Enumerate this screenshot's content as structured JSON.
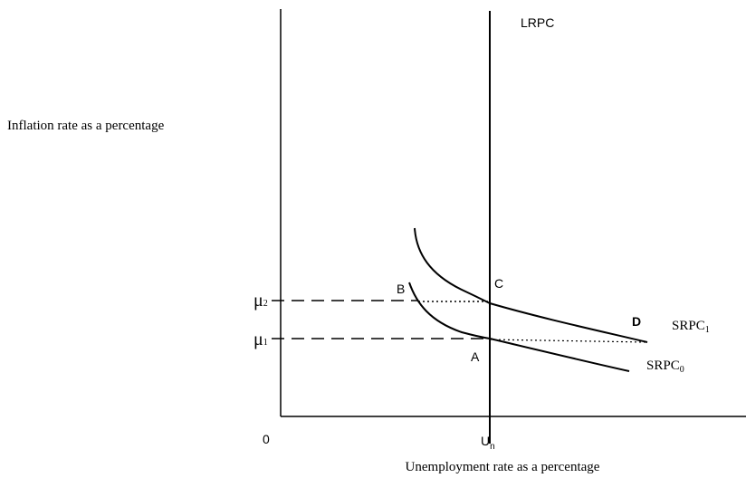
{
  "diagram": {
    "lrpc_label": "LRPC",
    "y_axis_label": "Inflation rate as a percentage",
    "x_axis_label": "Unemployment rate as a percentage",
    "origin_label": "0",
    "natural_rate": {
      "base": "U",
      "sub": "n"
    },
    "mu2": {
      "base": "μ",
      "sub": "2"
    },
    "mu1": {
      "base": "μ",
      "sub": "1"
    },
    "points": {
      "a": "A",
      "b": "B",
      "c": "C",
      "d": "D"
    },
    "srpc1": {
      "base": "SRPC",
      "sub": "1"
    },
    "srpc0": {
      "base": "SRPC",
      "sub": "0"
    }
  }
}
